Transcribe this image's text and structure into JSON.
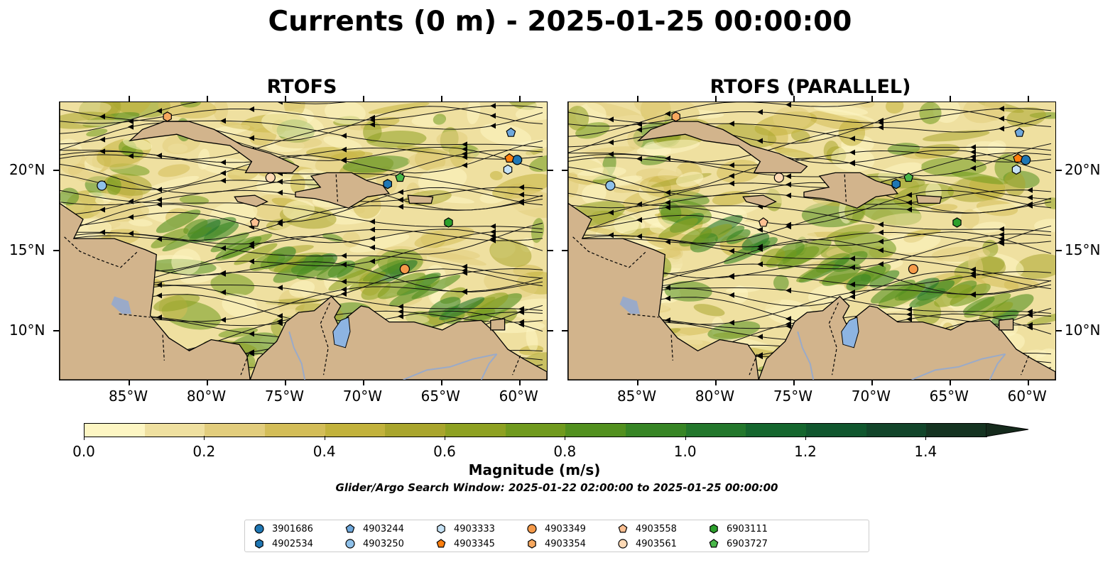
{
  "title": "Currents (0 m) - 2025-01-25 00:00:00",
  "panels": [
    {
      "title": "RTOFS"
    },
    {
      "title": "RTOFS (PARALLEL)"
    }
  ],
  "axes": {
    "lon_ticks": [
      "85°W",
      "80°W",
      "75°W",
      "70°W",
      "65°W",
      "60°W"
    ],
    "lat_ticks": [
      "20°N",
      "15°N",
      "10°N"
    ]
  },
  "colorbar": {
    "label": "Magnitude (m/s)",
    "ticks": [
      "0.0",
      "0.2",
      "0.4",
      "0.6",
      "0.8",
      "1.0",
      "1.2",
      "1.4"
    ],
    "range": [
      0.0,
      1.5
    ],
    "extend": "max",
    "colors": [
      "#fdf6c3",
      "#efe0a0",
      "#e2cd7d",
      "#d3bd58",
      "#c2b23c",
      "#a9a52d",
      "#8ea122",
      "#709a1e",
      "#52901f",
      "#378525",
      "#23772c",
      "#15662e",
      "#10562e",
      "#12452a",
      "#153321"
    ]
  },
  "search_window": "Glider/Argo Search Window: 2025-01-22 02:00:00 to 2025-01-25 00:00:00",
  "colors": {
    "land": "#d2b48c",
    "lake": "#8db4e2",
    "river": "#9aaac8"
  },
  "legend": [
    {
      "id": "3901686",
      "marker": "circle",
      "color": "#1f77b4"
    },
    {
      "id": "4902534",
      "marker": "hexagon",
      "color": "#1f77b4"
    },
    {
      "id": "4903244",
      "marker": "pentagon",
      "color": "#6fa8dc"
    },
    {
      "id": "4903250",
      "marker": "circle",
      "color": "#8fc1ea"
    },
    {
      "id": "4903333",
      "marker": "hexagon",
      "color": "#c6e2f5"
    },
    {
      "id": "4903345",
      "marker": "pentagon",
      "color": "#ff7f0e"
    },
    {
      "id": "4903349",
      "marker": "circle",
      "color": "#f59a4a"
    },
    {
      "id": "4903354",
      "marker": "hexagon",
      "color": "#f7a85f"
    },
    {
      "id": "4903558",
      "marker": "pentagon",
      "color": "#fdc092"
    },
    {
      "id": "4903561",
      "marker": "circle",
      "color": "#fdd9b5"
    },
    {
      "id": "6903111",
      "marker": "hexagon",
      "color": "#2ca02c"
    },
    {
      "id": "6903727",
      "marker": "pentagon",
      "color": "#49b749"
    }
  ],
  "floats": [
    {
      "id": "3901686",
      "lon": -60.2,
      "lat": 20.7
    },
    {
      "id": "4902534",
      "lon": -68.5,
      "lat": 19.2
    },
    {
      "id": "4903244",
      "lon": -60.6,
      "lat": 22.4
    },
    {
      "id": "4903250",
      "lon": -86.8,
      "lat": 19.1
    },
    {
      "id": "4903333",
      "lon": -60.8,
      "lat": 20.1
    },
    {
      "id": "4903345",
      "lon": -60.7,
      "lat": 20.8
    },
    {
      "id": "4903349",
      "lon": -67.4,
      "lat": 13.9
    },
    {
      "id": "4903354",
      "lon": -82.6,
      "lat": 23.4
    },
    {
      "id": "4903558",
      "lon": -77.0,
      "lat": 16.8
    },
    {
      "id": "4903561",
      "lon": -76.0,
      "lat": 19.6
    },
    {
      "id": "6903111",
      "lon": -64.6,
      "lat": 16.8
    },
    {
      "id": "6903727",
      "lon": -67.7,
      "lat": 19.6
    }
  ]
}
